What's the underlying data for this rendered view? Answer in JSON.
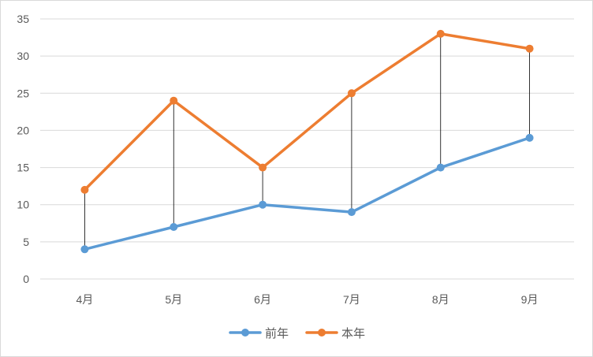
{
  "chart_data": {
    "type": "line",
    "categories": [
      "4月",
      "5月",
      "6月",
      "7月",
      "8月",
      "9月"
    ],
    "series": [
      {
        "name": "前年",
        "values": [
          4,
          7,
          10,
          9,
          15,
          19
        ],
        "color": "#5b9bd5"
      },
      {
        "name": "本年",
        "values": [
          12,
          24,
          15,
          25,
          33,
          31
        ],
        "color": "#ed7d31"
      }
    ],
    "y_ticks": [
      0,
      5,
      10,
      15,
      20,
      25,
      30,
      35
    ],
    "ylim": [
      0,
      35
    ],
    "grid": true,
    "drop_lines": true,
    "drop_line_color": "#000000",
    "legend_position": "bottom",
    "title": "",
    "xlabel": "",
    "ylabel": ""
  }
}
